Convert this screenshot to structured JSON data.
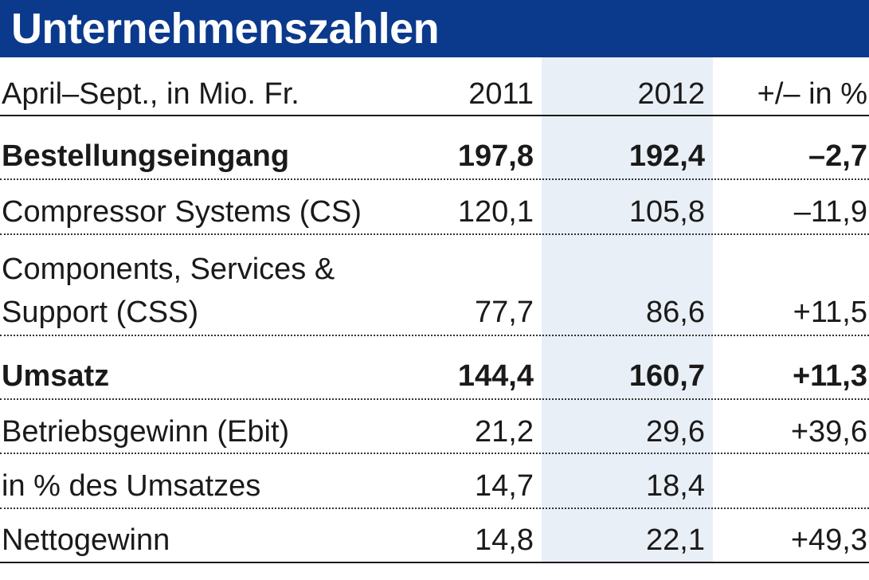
{
  "title": "Unternehmenszahlen",
  "header": {
    "label": "April–Sept., in Mio. Fr.",
    "col_2011": "2011",
    "col_2012": "2012",
    "col_change": "+/– in %"
  },
  "rows": [
    {
      "label": "Bestellungseingang",
      "v2011": "197,8",
      "v2012": "192,4",
      "change": "–2,7",
      "bold": true
    },
    {
      "label": "Compressor Systems (CS)",
      "v2011": "120,1",
      "v2012": "105,8",
      "change": "–11,9",
      "bold": false
    },
    {
      "label_line1": "Components, Services &",
      "label_line2": "Support (CSS)",
      "v2011": "77,7",
      "v2012": "86,6",
      "change": "+11,5",
      "bold": false
    },
    {
      "label": "Umsatz",
      "v2011": "144,4",
      "v2012": "160,7",
      "change": "+11,3",
      "bold": true
    },
    {
      "label": "Betriebsgewinn (Ebit)",
      "v2011": "21,2",
      "v2012": "29,6",
      "change": "+39,6",
      "bold": false
    },
    {
      "label": "in % des Umsatzes",
      "v2011": "14,7",
      "v2012": "18,4",
      "change": "",
      "bold": false
    },
    {
      "label": "Nettogewinn",
      "v2011": "14,8",
      "v2012": "22,1",
      "change": "+49,3",
      "bold": false
    }
  ],
  "colors": {
    "title_bar": "#0b3a8c",
    "highlight_column": "#e9eff6",
    "text": "#1a1a1a"
  },
  "chart_data": {
    "type": "table",
    "title": "Unternehmenszahlen",
    "columns": [
      "April–Sept., in Mio. Fr.",
      "2011",
      "2012",
      "+/– in %"
    ],
    "rows": [
      [
        "Bestellungseingang",
        197.8,
        192.4,
        -2.7
      ],
      [
        "Compressor Systems (CS)",
        120.1,
        105.8,
        -11.9
      ],
      [
        "Components, Services & Support (CSS)",
        77.7,
        86.6,
        11.5
      ],
      [
        "Umsatz",
        144.4,
        160.7,
        11.3
      ],
      [
        "Betriebsgewinn (Ebit)",
        21.2,
        29.6,
        39.6
      ],
      [
        "in % des Umsatzes",
        14.7,
        18.4,
        null
      ],
      [
        "Nettogewinn",
        14.8,
        22.1,
        49.3
      ]
    ],
    "highlighted_column": "2012"
  }
}
